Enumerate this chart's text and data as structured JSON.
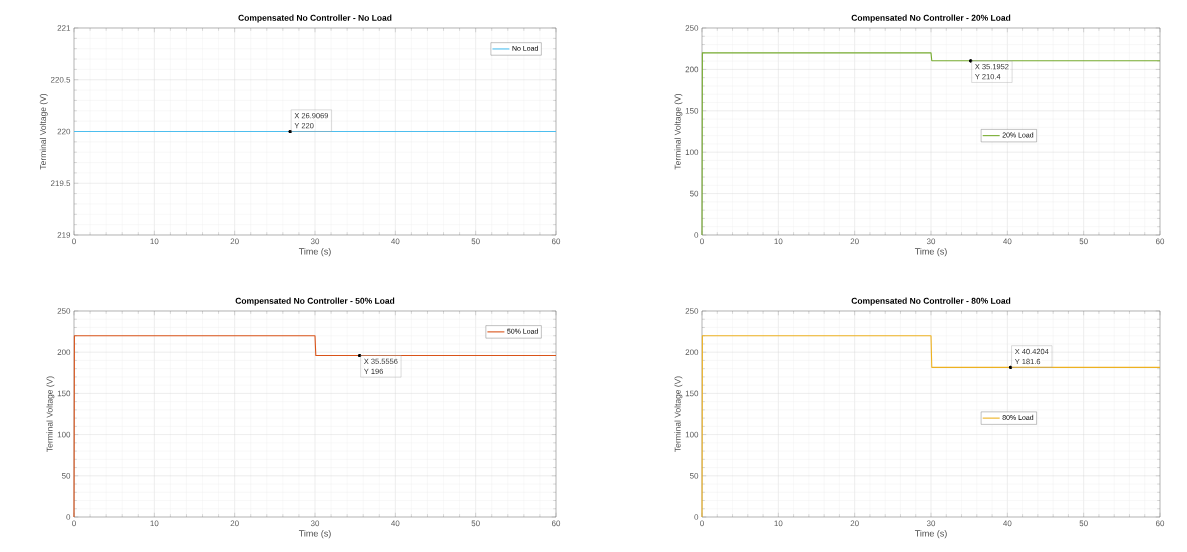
{
  "chart_data": [
    {
      "type": "line",
      "title": "Compensated No Controller - No Load",
      "xlabel": "Time (s)",
      "ylabel": "Terminal Voltage (V)",
      "xlim": [
        0,
        60
      ],
      "ylim": [
        219,
        221
      ],
      "xticks": [
        0,
        10,
        20,
        30,
        40,
        50,
        60
      ],
      "yticks": [
        219,
        219.5,
        220,
        220.5,
        221
      ],
      "grid": true,
      "legend": "top right",
      "series": [
        {
          "name": "No Load",
          "color": "#4dbeee",
          "x": [
            0,
            60
          ],
          "values": [
            220,
            220
          ]
        }
      ],
      "annotations": [
        {
          "text": "X 26.9069",
          "x": 26.9069,
          "y": 220
        },
        {
          "text": "Y 220",
          "x": 26.9069,
          "y": 220
        }
      ]
    },
    {
      "type": "line",
      "title": "Compensated No Controller - 20% Load",
      "xlabel": "Time (s)",
      "ylabel": "Terminal Voltage (V)",
      "xlim": [
        0,
        60
      ],
      "ylim": [
        0,
        250
      ],
      "xticks": [
        0,
        10,
        20,
        30,
        40,
        50,
        60
      ],
      "yticks": [
        0,
        50,
        100,
        150,
        200,
        250
      ],
      "grid": true,
      "legend": "center",
      "series": [
        {
          "name": "20% Load",
          "color": "#77ac30",
          "x": [
            0,
            0.05,
            30,
            30.1,
            60
          ],
          "values": [
            0,
            220,
            220,
            210.4,
            210.4
          ]
        }
      ],
      "annotations": [
        {
          "text": "X 35.1952",
          "x": 35.1952,
          "y": 210.4
        },
        {
          "text": "Y 210.4",
          "x": 35.1952,
          "y": 210.4
        }
      ]
    },
    {
      "type": "line",
      "title": "Compensated No Controller - 50% Load",
      "xlabel": "Time (s)",
      "ylabel": "Terminal Voltage (V)",
      "xlim": [
        0,
        60
      ],
      "ylim": [
        0,
        250
      ],
      "xticks": [
        0,
        10,
        20,
        30,
        40,
        50,
        60
      ],
      "yticks": [
        0,
        50,
        100,
        150,
        200,
        250
      ],
      "grid": true,
      "legend": "top right",
      "series": [
        {
          "name": "50% Load",
          "color": "#d95319",
          "x": [
            0,
            0.05,
            30,
            30.1,
            60
          ],
          "values": [
            0,
            220,
            220,
            196,
            196
          ]
        }
      ],
      "annotations": [
        {
          "text": "X 35.5556",
          "x": 35.5556,
          "y": 196
        },
        {
          "text": "Y 196",
          "x": 35.5556,
          "y": 196
        }
      ]
    },
    {
      "type": "line",
      "title": "Compensated No Controller - 80% Load",
      "xlabel": "Time (s)",
      "ylabel": "Terminal Voltage (V)",
      "xlim": [
        0,
        60
      ],
      "ylim": [
        0,
        250
      ],
      "xticks": [
        0,
        10,
        20,
        30,
        40,
        50,
        60
      ],
      "yticks": [
        0,
        50,
        100,
        150,
        200,
        250
      ],
      "grid": true,
      "legend": "center",
      "series": [
        {
          "name": "80% Load",
          "color": "#edb120",
          "x": [
            0,
            0.05,
            30,
            30.1,
            60
          ],
          "values": [
            0,
            220,
            220,
            181.6,
            181.6
          ]
        }
      ],
      "annotations": [
        {
          "text": "X 40.4204",
          "x": 40.4204,
          "y": 181.6
        },
        {
          "text": "Y 181.6",
          "x": 40.4204,
          "y": 181.6
        }
      ]
    }
  ]
}
